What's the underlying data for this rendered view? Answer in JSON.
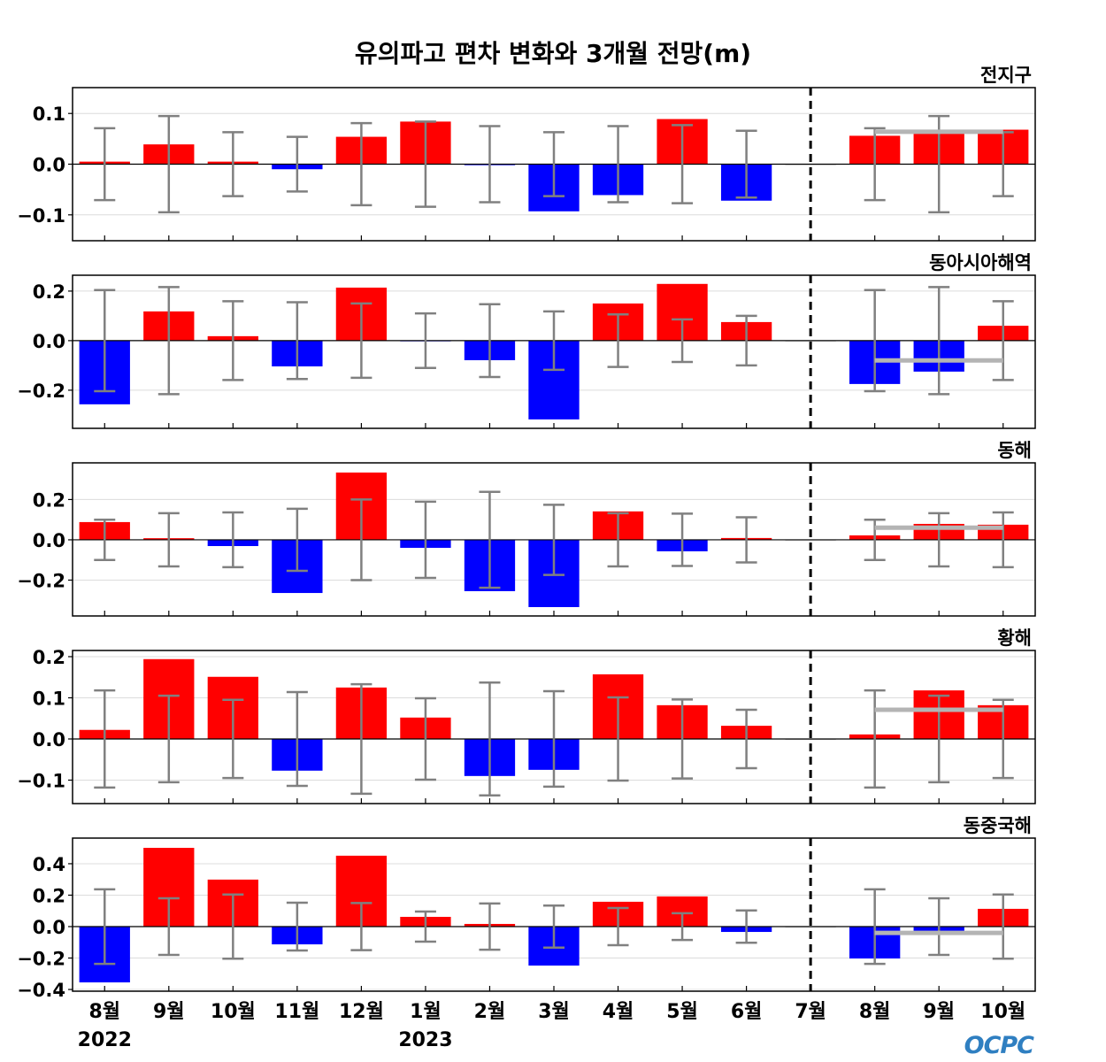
{
  "logo": "OCPC",
  "colors": {
    "positive": "#ff0000",
    "negative": "#0000ff",
    "zero_bar": "#a0a0a0",
    "error_bar": "#808080",
    "forecast_mean_line": "#b4b4b4",
    "grid": "#dcdcdc",
    "divider": "#000000"
  },
  "chart_data": {
    "type": "bar",
    "title": "유의파고 편차 변화와 3개월 전망(m)",
    "categories": [
      "8월",
      "9월",
      "10월",
      "11월",
      "12월",
      "1월",
      "2월",
      "3월",
      "4월",
      "5월",
      "6월",
      "7월",
      "8월",
      "9월",
      "10월"
    ],
    "year_labels": [
      {
        "index": 0,
        "label": "2022"
      },
      {
        "index": 5,
        "label": "2023"
      }
    ],
    "divider_index": 11,
    "forecast_start_index": 12,
    "forecast_end_index": 14,
    "grid": true,
    "panels": [
      {
        "title": "전지구",
        "ylim": [
          -0.151,
          0.151
        ],
        "yticks": [
          -0.1,
          0.0,
          0.1
        ],
        "values": [
          0.005,
          0.039,
          0.005,
          -0.01,
          0.054,
          0.084,
          -0.002,
          -0.093,
          -0.061,
          0.089,
          -0.072,
          0.0,
          0.056,
          0.066,
          0.068
        ],
        "error": [
          0.071,
          0.095,
          0.063,
          0.054,
          0.081,
          0.084,
          0.075,
          0.063,
          0.075,
          0.077,
          0.066,
          null,
          0.071,
          0.095,
          0.063
        ],
        "forecast_mean": 0.064
      },
      {
        "title": "동아시아해역",
        "ylim": [
          -0.354,
          0.264
        ],
        "yticks": [
          -0.2,
          0.0,
          0.2
        ],
        "values": [
          -0.257,
          0.118,
          0.018,
          -0.104,
          0.214,
          -0.002,
          -0.079,
          -0.318,
          0.15,
          0.229,
          0.075,
          0.0,
          -0.175,
          -0.125,
          0.06
        ],
        "error": [
          0.204,
          0.216,
          0.159,
          0.155,
          0.15,
          0.11,
          0.147,
          0.118,
          0.106,
          0.086,
          0.1,
          null,
          0.204,
          0.216,
          0.159
        ],
        "forecast_mean": -0.08
      },
      {
        "title": "동해",
        "ylim": [
          -0.378,
          0.382
        ],
        "yticks": [
          -0.2,
          0.0,
          0.2
        ],
        "values": [
          0.088,
          0.008,
          -0.031,
          -0.264,
          0.334,
          -0.04,
          -0.255,
          -0.334,
          0.141,
          -0.057,
          0.009,
          0.0,
          0.022,
          0.079,
          0.075
        ],
        "error": [
          0.1,
          0.132,
          0.136,
          0.154,
          0.2,
          0.189,
          0.238,
          0.174,
          0.132,
          0.13,
          0.112,
          null,
          0.1,
          0.132,
          0.136
        ],
        "forecast_mean": 0.06
      },
      {
        "title": "황해",
        "ylim": [
          -0.157,
          0.215
        ],
        "yticks": [
          -0.1,
          0.0,
          0.1,
          0.2
        ],
        "values": [
          0.022,
          0.194,
          0.151,
          -0.077,
          0.125,
          0.052,
          -0.09,
          -0.075,
          0.157,
          0.082,
          0.032,
          0.0,
          0.011,
          0.118,
          0.082
        ],
        "error": [
          0.118,
          0.105,
          0.095,
          0.114,
          0.133,
          0.099,
          0.137,
          0.116,
          0.101,
          0.096,
          0.071,
          null,
          0.118,
          0.105,
          0.095
        ],
        "forecast_mean": 0.071
      },
      {
        "title": "동중국해",
        "ylim": [
          -0.411,
          0.563
        ],
        "yticks": [
          -0.4,
          -0.2,
          0.0,
          0.2,
          0.4
        ],
        "values": [
          -0.355,
          0.501,
          0.299,
          -0.113,
          0.451,
          0.062,
          0.017,
          -0.248,
          0.158,
          0.192,
          -0.034,
          0.0,
          -0.203,
          -0.028,
          0.113
        ],
        "error": [
          0.237,
          0.18,
          0.204,
          0.152,
          0.15,
          0.096,
          0.147,
          0.134,
          0.118,
          0.085,
          0.103,
          null,
          0.237,
          0.18,
          0.204
        ],
        "forecast_mean": -0.04
      }
    ]
  }
}
